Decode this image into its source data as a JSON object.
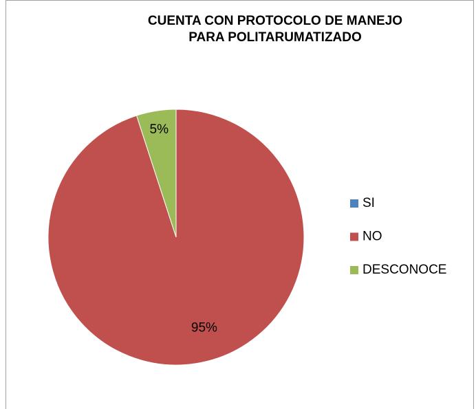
{
  "chart_data": {
    "type": "pie",
    "title": [
      "CUENTA CON PROTOCOLO DE MANEJO",
      "PARA POLITARUMATIZADO"
    ],
    "categories": [
      "SI",
      "NO",
      "DESCONOCE"
    ],
    "values": [
      0,
      95,
      5
    ],
    "value_labels": [
      null,
      "95%",
      "5%"
    ],
    "colors": [
      "#4f81bd",
      "#c0504d",
      "#9bbb59"
    ],
    "legend": "right"
  }
}
